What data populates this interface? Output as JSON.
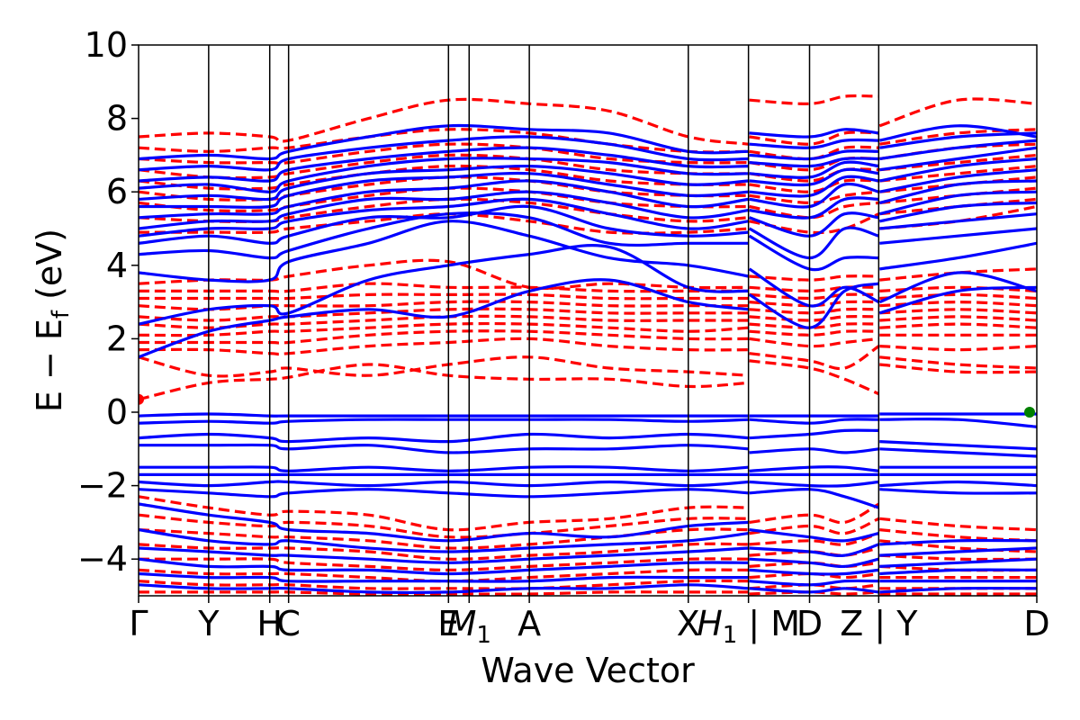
{
  "chart_data": {
    "type": "line",
    "xlabel": "Wave Vector",
    "ylabel_parts": {
      "main": "E − E",
      "sub": "f",
      "unit": " (eV)"
    },
    "ylim": [
      -5,
      10
    ],
    "yticks": [
      {
        "value": 10,
        "label": "10"
      },
      {
        "value": 8,
        "label": "8"
      },
      {
        "value": 6,
        "label": "6"
      },
      {
        "value": 4,
        "label": "4"
      },
      {
        "value": 2,
        "label": "2"
      },
      {
        "value": 0,
        "label": "0"
      },
      {
        "value": -2,
        "label": "−2"
      },
      {
        "value": -4,
        "label": "−4"
      }
    ],
    "xlim": [
      0,
      10.0
    ],
    "kpoints": [
      {
        "x": 0.0,
        "label": "Γ"
      },
      {
        "x": 0.78,
        "label": "Y"
      },
      {
        "x": 1.46,
        "label": "H"
      },
      {
        "x": 1.67,
        "label": "C"
      },
      {
        "x": 3.45,
        "label": "E"
      },
      {
        "x": 3.68,
        "label": "M",
        "sub": "1"
      },
      {
        "x": 4.35,
        "label": "A"
      },
      {
        "x": 6.12,
        "label": "X"
      },
      {
        "x": 6.79,
        "label": "H",
        "sub": "1",
        "suffix": " | M"
      },
      {
        "x": 7.47,
        "label": "D"
      },
      {
        "x": 8.24,
        "label": "Z | Y"
      },
      {
        "x": 10.0,
        "label": "D"
      }
    ],
    "series_styles": [
      {
        "id": "spin-up",
        "color": "#0000ff",
        "dash": "solid"
      },
      {
        "id": "spin-down",
        "color": "#ff0000",
        "dash": "dashed"
      }
    ],
    "segments": [
      [
        0.0,
        3.45
      ],
      [
        3.68,
        6.79
      ],
      [
        6.79,
        8.24
      ],
      [
        8.24,
        10.0
      ]
    ],
    "blue_bands": [
      [
        1.5,
        2.2,
        2.5,
        2.6,
        2.8,
        2.6,
        3.3,
        3.6,
        3.0,
        2.8,
        3.2,
        2.3,
        3.3,
        3.5,
        2.7,
        3.3,
        3.4
      ],
      [
        2.4,
        2.8,
        2.9,
        2.7,
        3.6,
        4.0,
        4.3,
        4.5,
        3.4,
        3.3,
        3.9,
        2.9,
        3.4,
        3.0,
        3.0,
        3.8,
        3.3
      ],
      [
        3.8,
        3.6,
        3.6,
        4.1,
        4.6,
        5.2,
        4.8,
        4.2,
        4.0,
        3.7,
        4.8,
        3.9,
        4.2,
        4.2,
        3.9,
        4.2,
        4.6
      ],
      [
        4.3,
        4.4,
        4.2,
        4.4,
        5.0,
        5.4,
        5.3,
        4.6,
        4.6,
        4.6,
        5.0,
        4.2,
        5.0,
        4.8,
        4.6,
        4.8,
        5.0
      ],
      [
        4.6,
        4.8,
        4.6,
        4.8,
        5.3,
        5.3,
        5.6,
        5.0,
        4.8,
        4.9,
        5.3,
        4.8,
        5.4,
        5.3,
        5.0,
        5.2,
        5.4
      ],
      [
        4.8,
        5.0,
        5.0,
        5.2,
        5.5,
        5.6,
        5.8,
        5.4,
        5.0,
        5.2,
        5.5,
        5.3,
        5.8,
        5.8,
        5.2,
        5.6,
        5.7
      ],
      [
        5.0,
        5.2,
        5.2,
        5.4,
        5.8,
        5.8,
        6.0,
        5.7,
        5.3,
        5.5,
        5.8,
        5.6,
        6.2,
        6.0,
        5.4,
        5.9,
        6.0
      ],
      [
        5.3,
        5.4,
        5.4,
        5.6,
        6.0,
        6.1,
        6.3,
        6.0,
        5.6,
        5.8,
        6.0,
        5.9,
        6.4,
        6.3,
        5.7,
        6.2,
        6.3
      ],
      [
        5.6,
        5.6,
        5.6,
        5.9,
        6.3,
        6.4,
        6.5,
        6.2,
        5.9,
        6.0,
        6.3,
        6.2,
        6.6,
        6.5,
        6.0,
        6.4,
        6.6
      ],
      [
        5.8,
        5.9,
        5.8,
        6.1,
        6.5,
        6.6,
        6.7,
        6.5,
        6.2,
        6.3,
        6.5,
        6.4,
        6.8,
        6.7,
        6.3,
        6.7,
        6.9
      ],
      [
        6.1,
        6.2,
        6.0,
        6.3,
        6.7,
        6.9,
        6.9,
        6.8,
        6.5,
        6.5,
        6.8,
        6.7,
        6.9,
        6.9,
        6.6,
        6.9,
        7.2
      ],
      [
        6.3,
        6.4,
        6.3,
        6.6,
        6.9,
        7.1,
        7.2,
        7.0,
        6.7,
        6.7,
        7.0,
        6.9,
        7.1,
        7.1,
        6.9,
        7.2,
        7.4
      ],
      [
        6.6,
        6.7,
        6.6,
        6.9,
        7.2,
        7.4,
        7.5,
        7.3,
        6.9,
        6.9,
        7.3,
        7.2,
        7.4,
        7.4,
        7.2,
        7.5,
        7.6
      ],
      [
        6.9,
        7.0,
        6.9,
        7.1,
        7.5,
        7.8,
        7.7,
        7.6,
        7.1,
        7.1,
        7.6,
        7.5,
        7.7,
        7.6,
        7.4,
        7.8,
        7.5
      ],
      [
        -0.1,
        -0.05,
        -0.1,
        -0.1,
        -0.1,
        -0.1,
        -0.1,
        -0.1,
        -0.1,
        -0.1,
        -0.1,
        -0.1,
        -0.1,
        -0.1,
        -0.05,
        -0.05,
        -0.05
      ],
      [
        -0.3,
        -0.25,
        -0.3,
        -0.25,
        -0.2,
        -0.2,
        -0.2,
        -0.2,
        -0.25,
        -0.2,
        -0.2,
        -0.3,
        -0.2,
        -0.2,
        -0.2,
        -0.2,
        -0.4
      ],
      [
        -0.7,
        -0.6,
        -0.7,
        -0.8,
        -0.7,
        -0.8,
        -0.6,
        -0.7,
        -0.6,
        -0.7,
        -0.7,
        -0.6,
        -0.5,
        -0.5,
        -0.8,
        -0.9,
        -1.0
      ],
      [
        -0.9,
        -0.9,
        -0.9,
        -1.0,
        -0.9,
        -1.1,
        -1.0,
        -1.0,
        -0.9,
        -1.0,
        -1.1,
        -1.0,
        -1.1,
        -1.0,
        -1.0,
        -1.1,
        -1.2
      ],
      [
        -1.5,
        -1.5,
        -1.5,
        -1.6,
        -1.5,
        -1.6,
        -1.5,
        -1.5,
        -1.6,
        -1.5,
        -1.6,
        -1.5,
        -1.5,
        -1.6,
        -1.5,
        -1.5,
        -1.5
      ],
      [
        -1.7,
        -1.7,
        -1.7,
        -1.7,
        -1.7,
        -1.7,
        -1.7,
        -1.7,
        -1.7,
        -1.7,
        -1.7,
        -1.7,
        -1.7,
        -1.7,
        -1.7,
        -1.7,
        -1.7
      ],
      [
        -1.9,
        -2.0,
        -1.9,
        -1.9,
        -2.0,
        -1.9,
        -2.0,
        -1.9,
        -2.0,
        -1.9,
        -1.9,
        -2.0,
        -2.0,
        -1.9,
        -2.0,
        -1.9,
        -2.0
      ],
      [
        -2.1,
        -2.2,
        -2.3,
        -2.2,
        -2.1,
        -2.2,
        -2.3,
        -2.2,
        -2.1,
        -2.2,
        -2.2,
        -2.1,
        -2.3,
        -2.6,
        -2.1,
        -2.2,
        -2.2
      ],
      [
        -2.5,
        -2.8,
        -3.0,
        -3.2,
        -3.3,
        -3.5,
        -3.3,
        -3.4,
        -3.1,
        -3.0,
        -3.2,
        -3.4,
        -3.5,
        -3.3,
        -3.6,
        -3.5,
        -3.5
      ],
      [
        -3.2,
        -3.5,
        -3.6,
        -3.5,
        -3.7,
        -3.8,
        -3.7,
        -3.6,
        -3.5,
        -3.3,
        -3.7,
        -3.8,
        -3.9,
        -3.6,
        -3.9,
        -3.8,
        -3.7
      ],
      [
        -3.7,
        -3.8,
        -3.9,
        -3.9,
        -4.0,
        -4.1,
        -4.0,
        -3.9,
        -3.8,
        -3.7,
        -4.0,
        -4.1,
        -4.2,
        -4.0,
        -4.2,
        -4.1,
        -4.0
      ],
      [
        -4.0,
        -4.2,
        -4.2,
        -4.3,
        -4.3,
        -4.4,
        -4.3,
        -4.2,
        -4.1,
        -4.1,
        -4.3,
        -4.4,
        -4.4,
        -4.3,
        -4.4,
        -4.3,
        -4.3
      ],
      [
        -4.4,
        -4.5,
        -4.5,
        -4.6,
        -4.6,
        -4.6,
        -4.6,
        -4.5,
        -4.5,
        -4.5,
        -4.6,
        -4.7,
        -4.6,
        -4.6,
        -4.6,
        -4.6,
        -4.6
      ],
      [
        -4.7,
        -4.8,
        -4.8,
        -4.8,
        -4.9,
        -4.9,
        -4.8,
        -4.8,
        -4.7,
        -4.8,
        -4.8,
        -4.9,
        -4.8,
        -4.9,
        -4.9,
        -4.8,
        -4.8
      ]
    ],
    "red_bands": [
      [
        0.35,
        0.8,
        0.9,
        0.95,
        1.3,
        1.0,
        0.9,
        0.9,
        0.7,
        0.8,
        1.4,
        1.2,
        0.9,
        0.5,
        1.3,
        1.1,
        1.1
      ],
      [
        1.5,
        1.0,
        1.1,
        1.2,
        1.0,
        1.3,
        1.5,
        1.2,
        1.1,
        1.0,
        1.6,
        1.4,
        1.2,
        1.8,
        1.5,
        1.3,
        1.2
      ],
      [
        1.7,
        1.7,
        1.6,
        1.6,
        1.8,
        1.9,
        2.0,
        1.8,
        1.7,
        1.7,
        2.0,
        1.8,
        1.9,
        2.0,
        1.8,
        1.7,
        1.8
      ],
      [
        1.9,
        1.9,
        1.9,
        1.9,
        2.1,
        2.2,
        2.2,
        2.1,
        2.0,
        2.0,
        2.2,
        2.1,
        2.2,
        2.2,
        2.1,
        2.1,
        2.1
      ],
      [
        2.1,
        2.1,
        2.2,
        2.2,
        2.3,
        2.4,
        2.4,
        2.3,
        2.2,
        2.3,
        2.4,
        2.3,
        2.4,
        2.4,
        2.3,
        2.4,
        2.3
      ],
      [
        2.4,
        2.3,
        2.4,
        2.4,
        2.5,
        2.6,
        2.6,
        2.5,
        2.5,
        2.5,
        2.6,
        2.5,
        2.6,
        2.6,
        2.5,
        2.6,
        2.5
      ],
      [
        2.6,
        2.5,
        2.6,
        2.6,
        2.7,
        2.8,
        2.8,
        2.7,
        2.7,
        2.7,
        2.8,
        2.7,
        2.8,
        2.8,
        2.7,
        2.8,
        2.7
      ],
      [
        2.9,
        2.8,
        2.9,
        2.9,
        2.9,
        3.0,
        3.0,
        2.9,
        2.9,
        2.9,
        3.0,
        2.9,
        3.0,
        3.0,
        2.9,
        3.0,
        2.9
      ],
      [
        3.1,
        3.1,
        3.1,
        3.1,
        3.2,
        3.2,
        3.2,
        3.1,
        3.1,
        3.1,
        3.2,
        3.1,
        3.2,
        3.2,
        3.1,
        3.2,
        3.1
      ],
      [
        3.3,
        3.3,
        3.3,
        3.3,
        3.5,
        3.4,
        3.4,
        3.3,
        3.3,
        3.3,
        3.4,
        3.3,
        3.4,
        3.4,
        3.3,
        3.4,
        3.3
      ],
      [
        3.5,
        3.6,
        3.6,
        3.7,
        4.0,
        4.1,
        3.4,
        3.5,
        3.4,
        3.4,
        3.7,
        3.6,
        3.7,
        3.7,
        3.6,
        3.8,
        3.9
      ],
      [
        4.9,
        4.9,
        4.9,
        5.0,
        5.2,
        5.4,
        5.2,
        4.9,
        4.9,
        5.0,
        5.2,
        4.9,
        5.0,
        5.4,
        5.0,
        5.2,
        5.6
      ],
      [
        5.3,
        5.2,
        5.2,
        5.3,
        5.6,
        5.8,
        5.7,
        5.4,
        5.2,
        5.3,
        5.6,
        5.3,
        5.6,
        5.7,
        5.4,
        5.6,
        5.8
      ],
      [
        5.7,
        5.5,
        5.5,
        5.6,
        5.9,
        6.1,
        6.0,
        5.7,
        5.6,
        5.6,
        5.9,
        5.7,
        5.9,
        6.0,
        5.7,
        5.9,
        6.1
      ],
      [
        6.0,
        5.8,
        5.8,
        5.9,
        6.2,
        6.4,
        6.3,
        6.0,
        5.9,
        5.9,
        6.2,
        6.0,
        6.3,
        6.3,
        6.0,
        6.2,
        6.4
      ],
      [
        6.3,
        6.1,
        6.1,
        6.2,
        6.5,
        6.7,
        6.6,
        6.3,
        6.2,
        6.2,
        6.5,
        6.3,
        6.6,
        6.6,
        6.3,
        6.5,
        6.7
      ],
      [
        6.6,
        6.4,
        6.4,
        6.5,
        6.8,
        7.0,
        6.9,
        6.6,
        6.5,
        6.5,
        6.8,
        6.6,
        6.9,
        6.9,
        6.6,
        6.8,
        7.0
      ],
      [
        6.9,
        6.8,
        6.8,
        6.8,
        7.1,
        7.3,
        7.2,
        6.9,
        6.8,
        6.8,
        7.1,
        6.9,
        7.2,
        7.2,
        6.9,
        7.2,
        7.3
      ],
      [
        7.2,
        7.1,
        7.2,
        7.2,
        7.5,
        7.7,
        7.6,
        7.3,
        7.1,
        7.1,
        7.5,
        7.3,
        7.6,
        7.6,
        7.3,
        7.6,
        7.7
      ],
      [
        7.5,
        7.6,
        7.5,
        7.4,
        8.0,
        8.5,
        8.4,
        8.2,
        7.5,
        7.3,
        8.5,
        8.4,
        8.6,
        8.6,
        7.8,
        8.5,
        8.4
      ],
      [
        -2.3,
        -2.6,
        -2.8,
        -2.7,
        -2.8,
        -3.2,
        -3.0,
        -2.9,
        -2.6,
        -2.6,
        -3.0,
        -2.8,
        -3.0,
        -2.5,
        -2.9,
        -3.1,
        -3.2
      ],
      [
        -2.8,
        -3.0,
        -3.1,
        -3.0,
        -3.1,
        -3.4,
        -3.3,
        -3.1,
        -2.9,
        -2.9,
        -3.3,
        -3.1,
        -3.3,
        -2.9,
        -3.2,
        -3.4,
        -3.5
      ],
      [
        -3.2,
        -3.3,
        -3.4,
        -3.4,
        -3.5,
        -3.7,
        -3.6,
        -3.4,
        -3.2,
        -3.2,
        -3.6,
        -3.5,
        -3.6,
        -3.3,
        -3.5,
        -3.7,
        -3.8
      ],
      [
        -3.6,
        -3.7,
        -3.7,
        -3.7,
        -3.8,
        -4.0,
        -3.9,
        -3.8,
        -3.6,
        -3.6,
        -3.9,
        -3.8,
        -3.9,
        -3.7,
        -3.9,
        -4.0,
        -4.0
      ],
      [
        -4.0,
        -4.0,
        -4.0,
        -4.1,
        -4.2,
        -4.3,
        -4.2,
        -4.1,
        -4.0,
        -4.0,
        -4.2,
        -4.1,
        -4.2,
        -4.1,
        -4.2,
        -4.3,
        -4.3
      ],
      [
        -4.3,
        -4.4,
        -4.4,
        -4.4,
        -4.5,
        -4.6,
        -4.5,
        -4.4,
        -4.3,
        -4.3,
        -4.5,
        -4.4,
        -4.5,
        -4.4,
        -4.5,
        -4.5,
        -4.5
      ],
      [
        -4.6,
        -4.7,
        -4.7,
        -4.7,
        -4.8,
        -4.8,
        -4.8,
        -4.7,
        -4.6,
        -4.6,
        -4.8,
        -4.7,
        -4.8,
        -4.7,
        -4.8,
        -4.8,
        -4.8
      ],
      [
        -4.9,
        -4.9,
        -4.9,
        -4.9,
        -4.95,
        -4.95,
        -4.95,
        -4.9,
        -4.9,
        -4.9,
        -4.95,
        -4.9,
        -4.95,
        -4.9,
        -4.95,
        -4.95,
        -4.95
      ]
    ],
    "band_x": [
      0.0,
      0.78,
      1.46,
      1.67,
      2.56,
      3.45,
      4.35,
      5.24,
      6.12,
      6.79,
      6.8,
      7.47,
      7.86,
      8.24,
      8.25,
      9.12,
      10.0
    ],
    "markers": [
      {
        "x": 0.0,
        "y": 0.35,
        "color": "#ff0000"
      },
      {
        "x": 9.92,
        "y": 0.0,
        "color": "#008000"
      }
    ]
  }
}
